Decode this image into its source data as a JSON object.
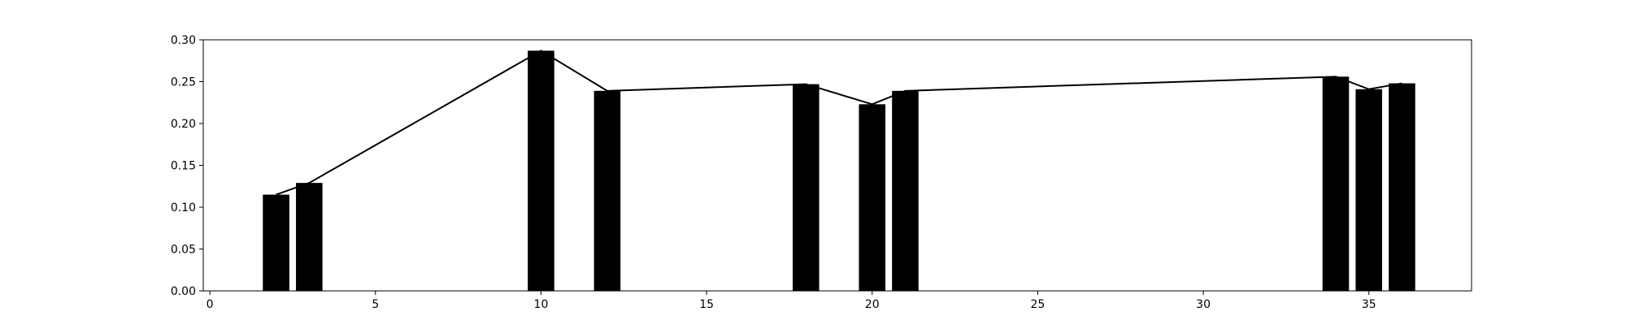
{
  "chart_data": {
    "type": "bar",
    "x": [
      2,
      3,
      10,
      12,
      18,
      20,
      21,
      34,
      35,
      36
    ],
    "values": [
      0.115,
      0.129,
      0.287,
      0.239,
      0.247,
      0.223,
      0.239,
      0.256,
      0.241,
      0.248
    ],
    "overlay_line": true,
    "title": "",
    "xlabel": "",
    "ylabel": "",
    "xlim": [
      -0.2,
      38.1
    ],
    "ylim": [
      0,
      0.3
    ],
    "xticks": [
      0,
      5,
      10,
      15,
      20,
      25,
      30,
      35
    ],
    "yticks": [
      0.0,
      0.05,
      0.1,
      0.15,
      0.2,
      0.25,
      0.3
    ],
    "xtick_labels": [
      "0",
      "5",
      "10",
      "15",
      "20",
      "25",
      "30",
      "35"
    ],
    "ytick_labels": [
      "0.00",
      "0.05",
      "0.10",
      "0.15",
      "0.20",
      "0.25",
      "0.30"
    ],
    "grid": false,
    "colors": {
      "bar": "#000000",
      "line": "#000000",
      "axes": "#000000"
    }
  }
}
